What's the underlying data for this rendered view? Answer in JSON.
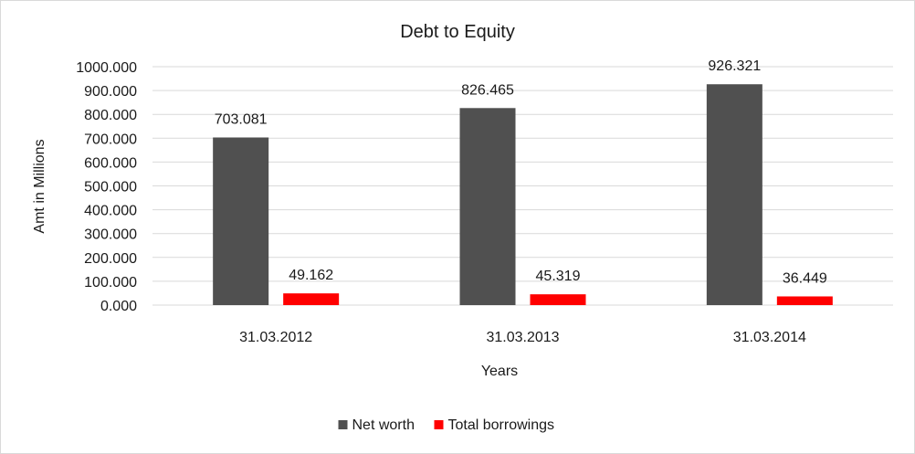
{
  "chart_data": {
    "type": "bar",
    "title": "Debt to Equity",
    "xlabel": "Years",
    "ylabel": "Amt in Millions",
    "categories": [
      "31.03.2012",
      "31.03.2013",
      "31.03.2014"
    ],
    "series": [
      {
        "name": "Net worth",
        "color": "#505050",
        "values": [
          703.081,
          826.465,
          926.321
        ],
        "labels": [
          "703.081",
          "826.465",
          "926.321"
        ]
      },
      {
        "name": "Total borrowings",
        "color": "#ff0000",
        "values": [
          49.162,
          45.319,
          36.449
        ],
        "labels": [
          "49.162",
          "45.319",
          "36.449"
        ]
      }
    ],
    "ylim": [
      0,
      1000
    ],
    "yticks": [
      0,
      100,
      200,
      300,
      400,
      500,
      600,
      700,
      800,
      900,
      1000
    ],
    "ytick_labels": [
      "0.000",
      "100.000",
      "200.000",
      "300.000",
      "400.000",
      "500.000",
      "600.000",
      "700.000",
      "800.000",
      "900.000",
      "1000.000"
    ],
    "grid": true,
    "legend_position": "bottom"
  }
}
